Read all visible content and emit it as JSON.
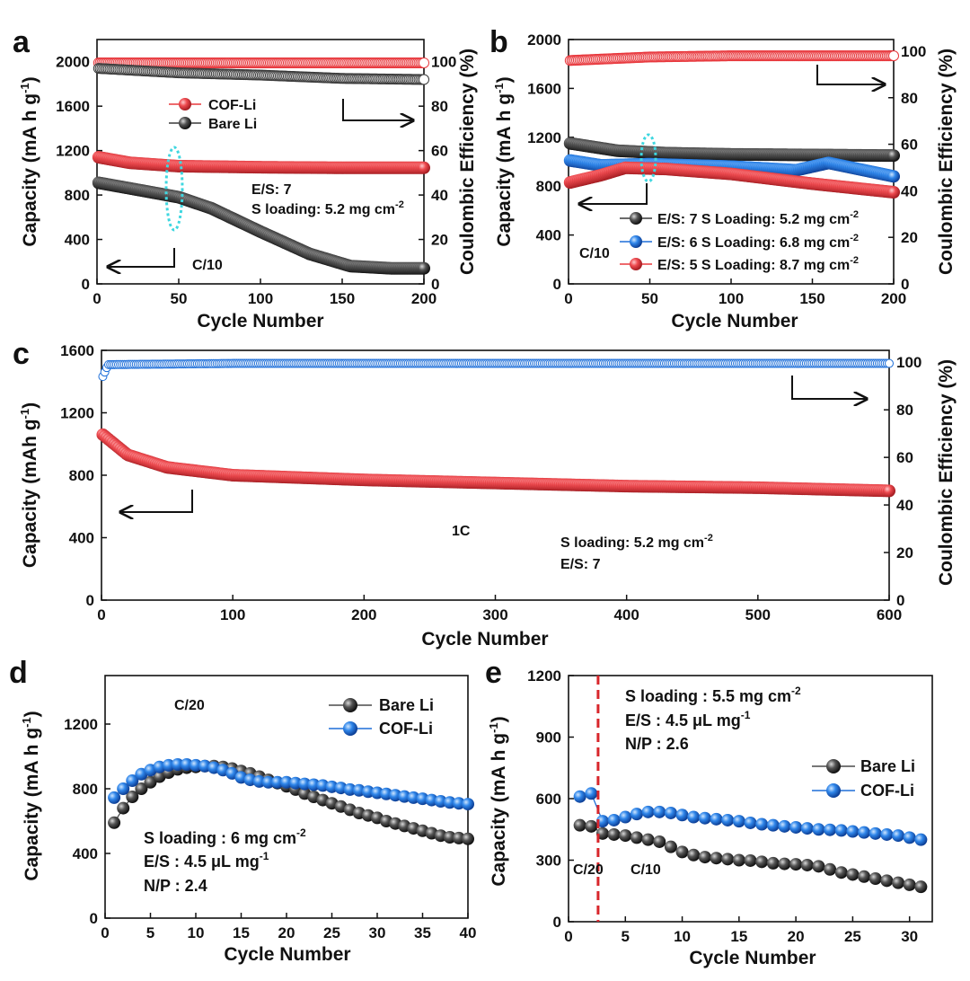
{
  "figure_caption": "",
  "chart_data": [
    {
      "panel": "a",
      "type": "scatter",
      "xlabel": "Cycle Number",
      "ylabel": "Capacity (mA h g⁻¹)",
      "y2label": "Coulombic Efficiency (%)",
      "xlim": [
        0,
        200
      ],
      "ylim": [
        0,
        2200
      ],
      "y2lim": [
        0,
        110
      ],
      "xticks": [
        "0",
        "50",
        "100",
        "150",
        "200"
      ],
      "yticks": [
        "0",
        "400",
        "800",
        "1200",
        "1600",
        "2000"
      ],
      "y2ticks": [
        "0",
        "20",
        "40",
        "60",
        "80",
        "100"
      ],
      "series": [
        {
          "name": "COF-Li",
          "color": "#e8383d",
          "axis": "left",
          "x": [
            1,
            20,
            50,
            100,
            150,
            200
          ],
          "values": [
            1140,
            1090,
            1060,
            1050,
            1045,
            1045
          ]
        },
        {
          "name": "Bare Li",
          "color": "#3a3a3a",
          "axis": "left",
          "x": [
            1,
            20,
            50,
            70,
            100,
            130,
            155,
            180,
            200
          ],
          "values": [
            910,
            860,
            780,
            680,
            470,
            270,
            160,
            140,
            140
          ]
        },
        {
          "name": "COF-Li CE",
          "color": "#e8383d",
          "axis": "right",
          "x": [
            1,
            50,
            100,
            150,
            200
          ],
          "values": [
            99.5,
            99.5,
            99.5,
            99.5,
            99.5
          ]
        },
        {
          "name": "Bare Li CE",
          "color": "#3a3a3a",
          "axis": "right",
          "x": [
            1,
            50,
            100,
            150,
            200
          ],
          "values": [
            97,
            95,
            94,
            92.5,
            92
          ]
        }
      ],
      "legend": [
        "COF-Li",
        "Bare Li"
      ],
      "annotations": [
        "E/S: 7",
        "S loading: 5.2 mg cm⁻²",
        "C/10"
      ]
    },
    {
      "panel": "b",
      "type": "scatter",
      "xlabel": "Cycle Number",
      "ylabel": "Capacity (mA h g⁻¹)",
      "y2label": "Coulombic Efficiency (%)",
      "xlim": [
        0,
        200
      ],
      "ylim": [
        0,
        2000
      ],
      "y2lim": [
        0,
        105
      ],
      "xticks": [
        "0",
        "50",
        "100",
        "150",
        "200"
      ],
      "yticks": [
        "0",
        "400",
        "800",
        "1200",
        "1600",
        "2000"
      ],
      "y2ticks": [
        "0",
        "20",
        "40",
        "60",
        "80",
        "100"
      ],
      "series": [
        {
          "name": "E/S: 7 S Loading: 5.2 mg cm⁻²",
          "color": "#3a3a3a",
          "axis": "left",
          "x": [
            1,
            30,
            60,
            100,
            150,
            200
          ],
          "values": [
            1150,
            1090,
            1070,
            1060,
            1055,
            1050
          ]
        },
        {
          "name": "E/S: 6 S Loading: 6.8 mg cm⁻²",
          "color": "#1e6fd9",
          "axis": "left",
          "x": [
            1,
            20,
            50,
            100,
            140,
            160,
            200
          ],
          "values": [
            1010,
            970,
            980,
            960,
            930,
            990,
            880
          ]
        },
        {
          "name": "E/S: 5 S Loading: 8.7 mg cm⁻²",
          "color": "#e8383d",
          "axis": "left",
          "x": [
            1,
            20,
            35,
            60,
            100,
            150,
            200
          ],
          "values": [
            830,
            890,
            950,
            940,
            900,
            820,
            750
          ]
        },
        {
          "name": "CE",
          "color": "#e8383d",
          "axis": "right",
          "x": [
            1,
            50,
            100,
            150,
            200
          ],
          "values": [
            96,
            97.5,
            98,
            98,
            98
          ]
        }
      ],
      "legend": [
        "E/S: 7 S Loading: 5.2 mg cm⁻²",
        "E/S: 6 S Loading: 6.8 mg cm⁻²",
        "E/S: 5 S Loading: 8.7 mg cm⁻²"
      ],
      "annotations": [
        "C/10"
      ]
    },
    {
      "panel": "c",
      "type": "scatter",
      "xlabel": "Cycle Number",
      "ylabel": "Capacity (mAh g⁻¹)",
      "y2label": "Coulombic Efficiency (%)",
      "xlim": [
        0,
        600
      ],
      "ylim": [
        0,
        1600
      ],
      "y2lim": [
        0,
        105
      ],
      "xticks": [
        "0",
        "100",
        "200",
        "300",
        "400",
        "500",
        "600"
      ],
      "yticks": [
        "0",
        "400",
        "800",
        "1200",
        "1600"
      ],
      "y2ticks": [
        "0",
        "20",
        "40",
        "60",
        "80",
        "100"
      ],
      "series": [
        {
          "name": "Capacity",
          "color": "#e8383d",
          "axis": "left",
          "x": [
            1,
            20,
            50,
            100,
            200,
            300,
            400,
            500,
            600
          ],
          "values": [
            1060,
            930,
            850,
            800,
            770,
            750,
            730,
            720,
            700
          ]
        },
        {
          "name": "CE",
          "color": "#1e6fd9",
          "axis": "right",
          "x": [
            1,
            5,
            100,
            300,
            500,
            600
          ],
          "values": [
            94,
            99,
            99.5,
            99.5,
            99.5,
            99.5
          ]
        }
      ],
      "annotations": [
        "1C",
        "S loading: 5.2 mg cm⁻²",
        "E/S: 7"
      ]
    },
    {
      "panel": "d",
      "type": "line",
      "xlabel": "Cycle Number",
      "ylabel": "Capacity (mA h g⁻¹)",
      "xlim": [
        0,
        40
      ],
      "ylim": [
        0,
        1500
      ],
      "xticks": [
        "0",
        "5",
        "10",
        "15",
        "20",
        "25",
        "30",
        "35",
        "40"
      ],
      "yticks": [
        "0",
        "400",
        "800",
        "1200"
      ],
      "series": [
        {
          "name": "Bare Li",
          "color": "#4a4a4a",
          "x": [
            1,
            2,
            3,
            4,
            5,
            6,
            7,
            8,
            9,
            10,
            11,
            12,
            13,
            14,
            15,
            16,
            17,
            18,
            19,
            20,
            21,
            22,
            23,
            24,
            25,
            26,
            27,
            28,
            29,
            30,
            31,
            32,
            33,
            34,
            35,
            36,
            37,
            38,
            39,
            40
          ],
          "values": [
            590,
            680,
            750,
            800,
            840,
            875,
            900,
            920,
            930,
            935,
            940,
            940,
            935,
            925,
            910,
            895,
            875,
            855,
            835,
            815,
            795,
            770,
            750,
            730,
            710,
            690,
            670,
            650,
            635,
            620,
            600,
            585,
            570,
            555,
            540,
            525,
            510,
            500,
            495,
            490
          ]
        },
        {
          "name": "COF-Li",
          "color": "#1e6fd9",
          "x": [
            1,
            2,
            3,
            4,
            5,
            6,
            7,
            8,
            9,
            10,
            11,
            12,
            13,
            14,
            15,
            16,
            17,
            18,
            19,
            20,
            21,
            22,
            23,
            24,
            25,
            26,
            27,
            28,
            29,
            30,
            31,
            32,
            33,
            34,
            35,
            36,
            37,
            38,
            39,
            40
          ],
          "values": [
            745,
            800,
            850,
            890,
            915,
            935,
            945,
            950,
            950,
            945,
            940,
            930,
            915,
            895,
            870,
            855,
            845,
            840,
            840,
            840,
            835,
            830,
            825,
            820,
            812,
            805,
            795,
            790,
            782,
            775,
            768,
            760,
            752,
            745,
            738,
            730,
            722,
            715,
            710,
            705
          ]
        }
      ],
      "legend": [
        "Bare Li",
        "COF-Li"
      ],
      "annotations": [
        "C/20",
        "S loading : 6 mg cm⁻²",
        "E/S : 4.5 μL mg⁻¹",
        "N/P : 2.4"
      ]
    },
    {
      "panel": "e",
      "type": "line",
      "xlabel": "Cycle Number",
      "ylabel": "Capacity (mA h g⁻¹)",
      "xlim": [
        0,
        32
      ],
      "ylim": [
        0,
        1200
      ],
      "xticks": [
        "0",
        "5",
        "10",
        "15",
        "20",
        "25",
        "30"
      ],
      "yticks": [
        "0",
        "300",
        "600",
        "900",
        "1200"
      ],
      "series": [
        {
          "name": "Bare Li",
          "color": "#4a4a4a",
          "x": [
            1,
            2,
            3,
            4,
            5,
            6,
            7,
            8,
            9,
            10,
            11,
            12,
            13,
            14,
            15,
            16,
            17,
            18,
            19,
            20,
            21,
            22,
            23,
            24,
            25,
            26,
            27,
            28,
            29,
            30,
            31
          ],
          "values": [
            470,
            465,
            430,
            425,
            420,
            410,
            400,
            390,
            365,
            340,
            325,
            315,
            310,
            305,
            300,
            298,
            292,
            285,
            282,
            280,
            276,
            270,
            255,
            240,
            230,
            220,
            210,
            200,
            190,
            180,
            170
          ]
        },
        {
          "name": "COF-Li",
          "color": "#1e6fd9",
          "x": [
            1,
            2,
            3,
            4,
            5,
            6,
            7,
            8,
            9,
            10,
            11,
            12,
            13,
            14,
            15,
            16,
            17,
            18,
            19,
            20,
            21,
            22,
            23,
            24,
            25,
            26,
            27,
            28,
            29,
            30,
            31
          ],
          "values": [
            610,
            625,
            490,
            495,
            510,
            525,
            535,
            535,
            530,
            520,
            510,
            505,
            500,
            495,
            490,
            482,
            475,
            470,
            465,
            460,
            455,
            450,
            448,
            445,
            440,
            435,
            430,
            425,
            420,
            410,
            400
          ]
        }
      ],
      "legend": [
        "Bare Li",
        "COF-Li"
      ],
      "rate_change_cycle": 2.6,
      "annotations": [
        "S loading : 5.5 mg cm⁻²",
        "E/S : 4.5 μL mg⁻¹",
        "N/P : 2.6",
        "C/20",
        "C/10"
      ]
    }
  ],
  "text": {
    "panel_labels": {
      "a": "a",
      "b": "b",
      "c": "c",
      "d": "d",
      "e": "e"
    },
    "a": {
      "ylabel": "Capacity (mA h g",
      "ylabel_sup": "-1",
      "ylabel_end": ")",
      "y2label": "Coulombic Efficiency (%)",
      "xlabel": "Cycle Number",
      "legend1": "COF-Li",
      "legend2": "Bare Li",
      "es": "E/S: 7",
      "sload": "S loading: 5.2 mg cm",
      "sload_sup": "-2",
      "rate": "C/10"
    },
    "b": {
      "ylabel": "Capacity (mA h g",
      "ylabel_sup": "-1",
      "ylabel_end": ")",
      "y2label": "Coulombic Efficiency (%)",
      "xlabel": "Cycle Number",
      "leg1": "E/S: 7 S Loading: 5.2 mg cm",
      "leg2": "E/S: 6 S Loading: 6.8 mg cm",
      "leg3": "E/S: 5 S Loading: 8.7 mg cm",
      "legsup": "-2",
      "rate": "C/10"
    },
    "c": {
      "ylabel": "Capacity (mAh g",
      "ylabel_sup": "-1",
      "ylabel_end": ")",
      "y2label": "Coulombic Efficiency (%)",
      "xlabel": "Cycle Number",
      "rate": "1C",
      "sload": "S loading: 5.2 mg cm",
      "sload_sup": "-2",
      "es": "E/S: 7"
    },
    "d": {
      "ylabel": "Capacity (mA h g",
      "ylabel_sup": "-1",
      "ylabel_end": ")",
      "xlabel": "Cycle Number",
      "rate": "C/20",
      "legend1": "Bare Li",
      "legend2": "COF-Li",
      "sload": "S loading : 6 mg cm",
      "sload_sup": "-2",
      "es": "E/S : 4.5 μL mg",
      "es_sup": "-1",
      "np": "N/P : 2.4"
    },
    "e": {
      "ylabel": "Capacity (mA h g",
      "ylabel_sup": "-1",
      "ylabel_end": ")",
      "xlabel": "Cycle Number",
      "legend1": "Bare Li",
      "legend2": "COF-Li",
      "sload": "S loading : 5.5 mg cm",
      "sload_sup": "-2",
      "es": "E/S : 4.5 μL mg",
      "es_sup": "-1",
      "np": "N/P : 2.6",
      "rate1": "C/20",
      "rate2": "C/10"
    }
  },
  "colors": {
    "red": "#e8383d",
    "black": "#3a3a3a",
    "blue": "#1e6fd9",
    "cyan": "#3fd7e0",
    "dashed_red": "#d8262b"
  }
}
